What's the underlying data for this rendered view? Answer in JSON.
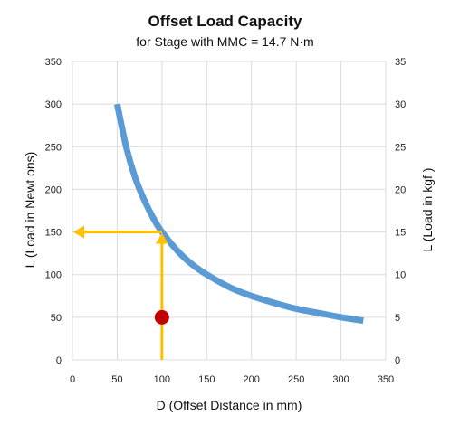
{
  "chart_data": {
    "type": "line",
    "title": "Offset Load Capacity",
    "subtitle": "for Stage with MMC = 14.7 N·m",
    "xlabel": "D (Offset Distance in mm)",
    "ylabel": "L (Load in Newt ons)",
    "y2label": "L (Load in kgf )",
    "xlim": [
      0,
      350
    ],
    "ylim": [
      0,
      350
    ],
    "y2lim": [
      0,
      35
    ],
    "xticks": [
      "0",
      "50",
      "100",
      "150",
      "200",
      "250",
      "300",
      "350"
    ],
    "yticks": [
      "0",
      "50",
      "100",
      "150",
      "200",
      "250",
      "300",
      "350"
    ],
    "y2ticks": [
      "0",
      "5",
      "10",
      "15",
      "20",
      "25",
      "30",
      "35"
    ],
    "grid": true,
    "series": [
      {
        "color": "#5b9bd5",
        "x": [
          50,
          60,
          70,
          80,
          90,
          100,
          120,
          140,
          160,
          180,
          200,
          225,
          250,
          275,
          300,
          325
        ],
        "y": [
          300,
          250,
          214,
          188,
          167,
          150,
          125,
          107,
          94,
          83,
          75,
          67,
          60,
          55,
          50,
          46
        ]
      }
    ],
    "annotations": {
      "guide_color": "#ffc000",
      "vertical_arrow": {
        "x": 100,
        "from_y": 0,
        "to_y": 150
      },
      "horizontal_arrow": {
        "y": 150,
        "from_x": 100,
        "to_x": 0
      },
      "point": {
        "x": 100,
        "y": 50,
        "color": "#c00000"
      }
    }
  }
}
